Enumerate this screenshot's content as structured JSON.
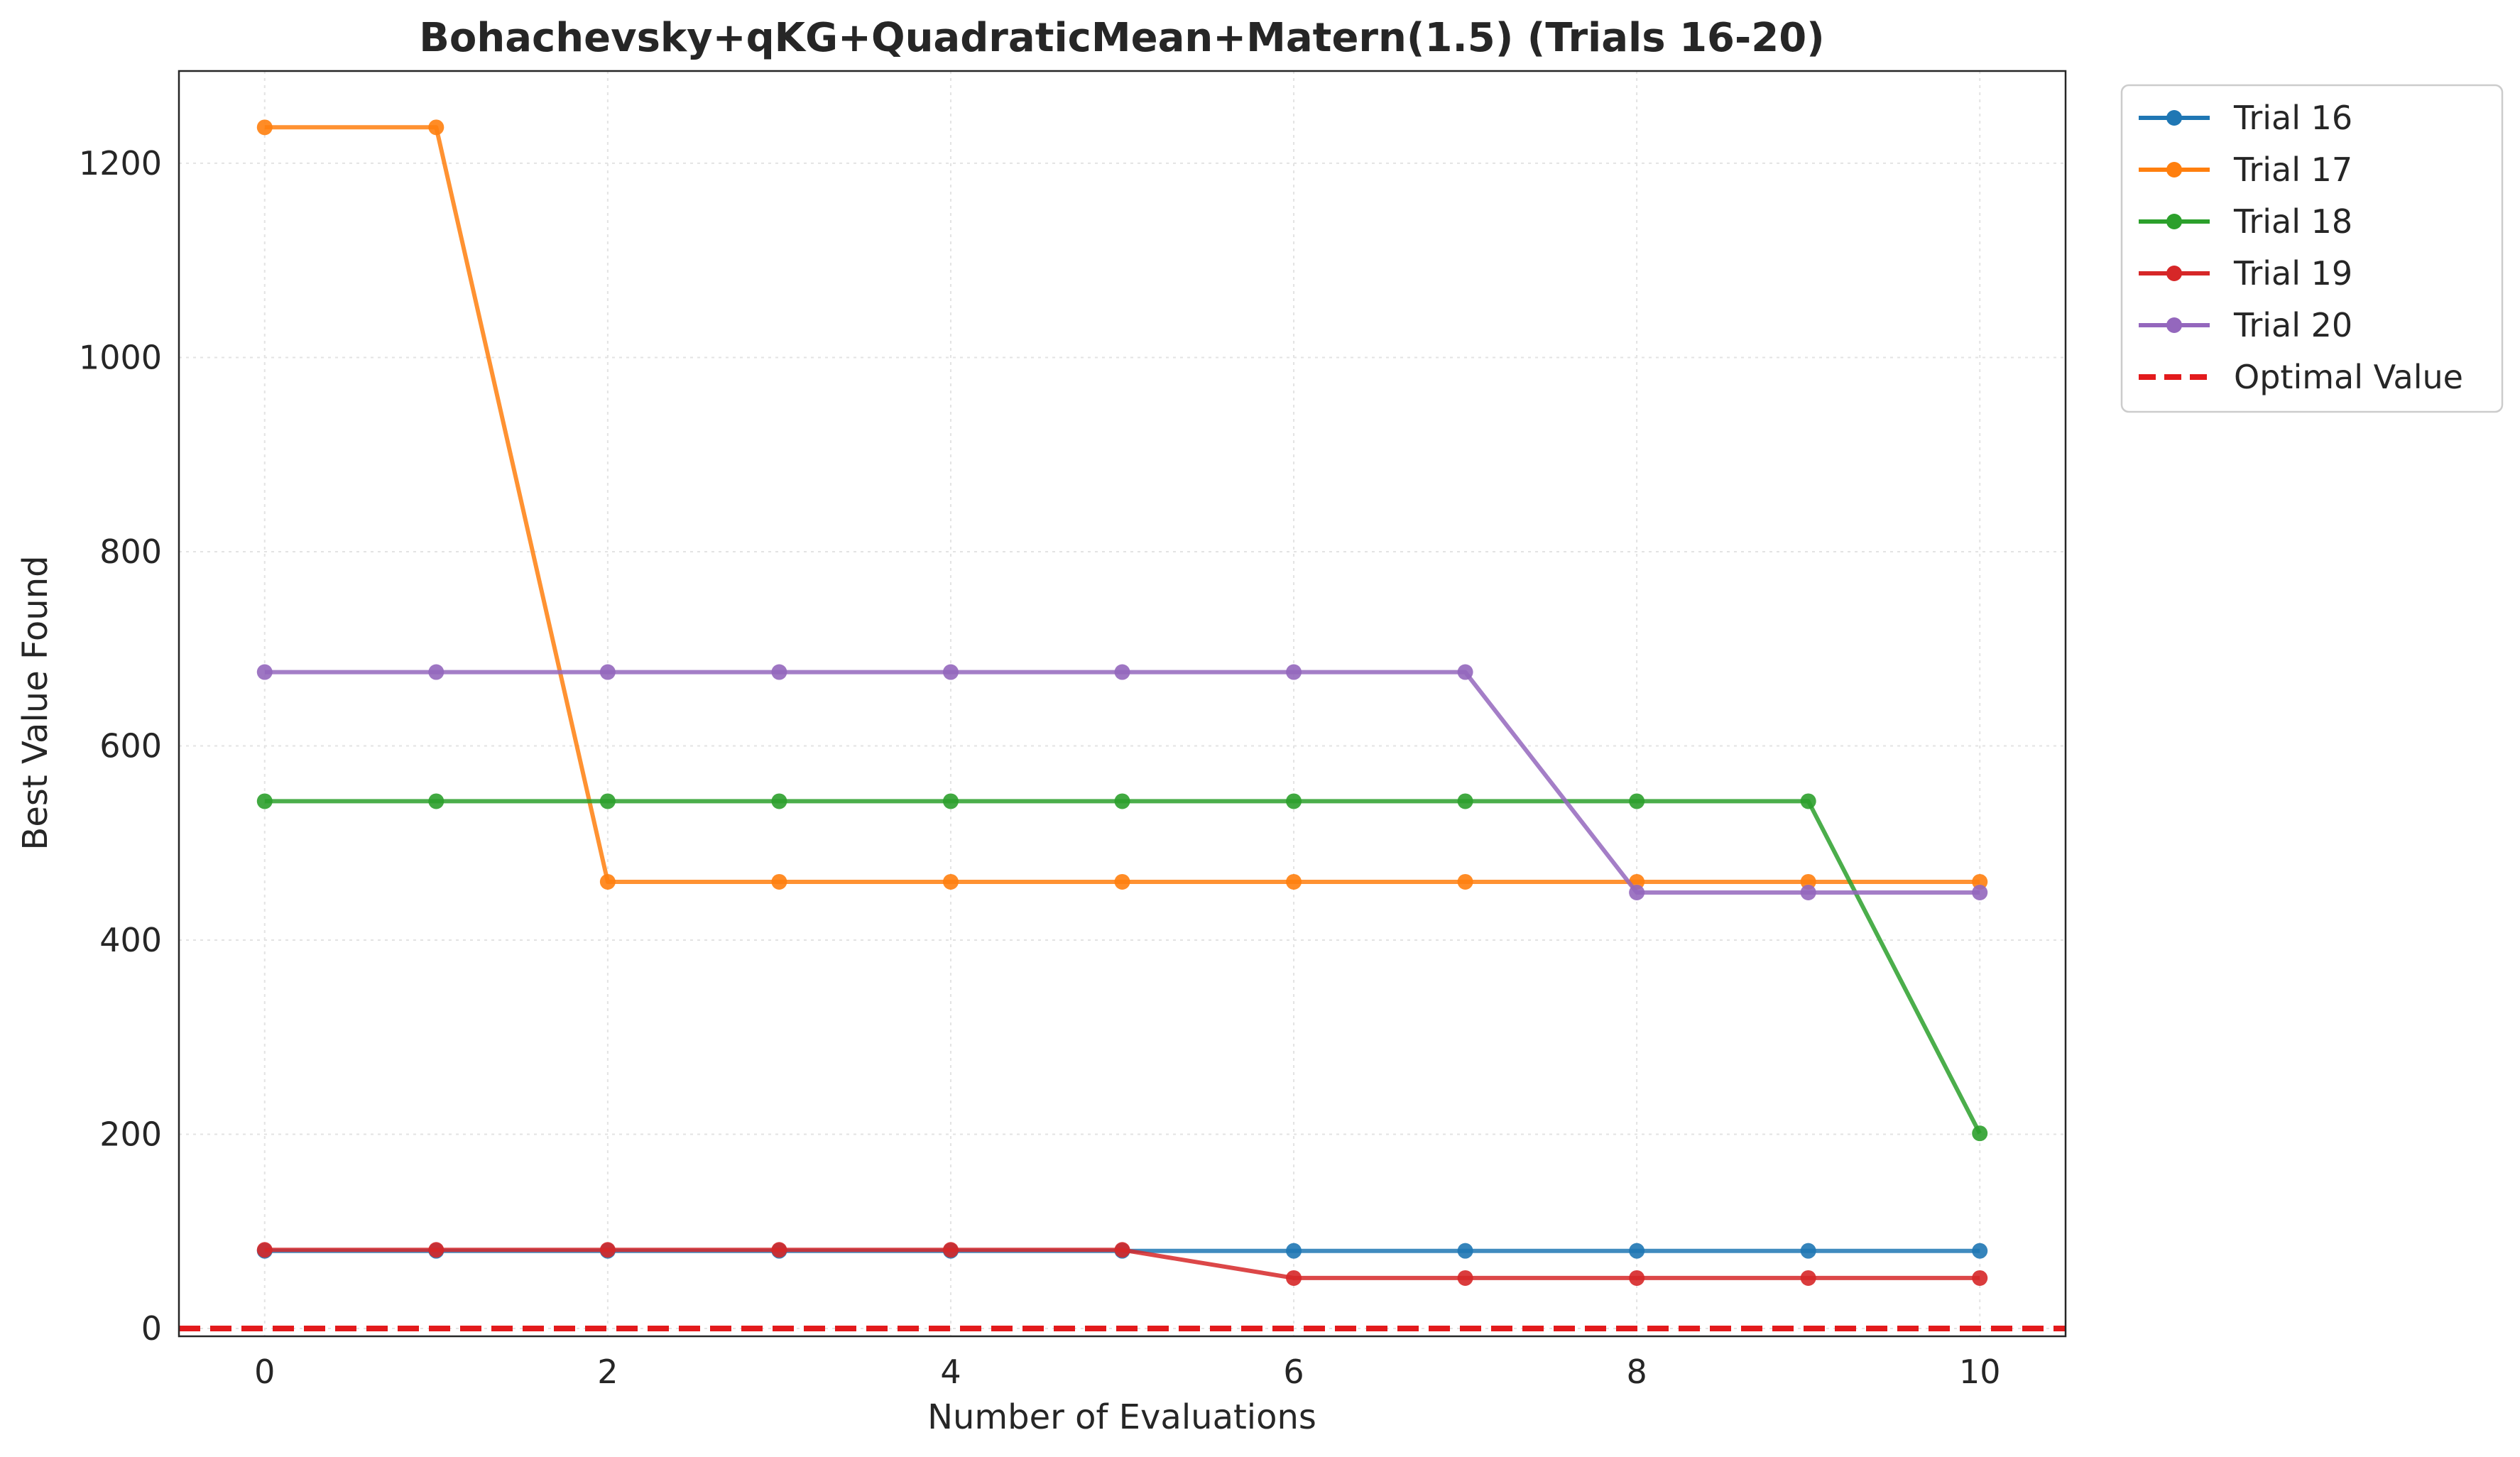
{
  "chart_data": {
    "type": "line",
    "title": "Bohachevsky+qKG+QuadraticMean+Matern(1.5) (Trials 16-20)",
    "xlabel": "Number of Evaluations",
    "ylabel": "Best Value Found",
    "xlim": [
      -0.5,
      10.5
    ],
    "ylim": [
      -8,
      1295
    ],
    "xticks": [
      0,
      2,
      4,
      6,
      8,
      10
    ],
    "yticks": [
      0,
      200,
      400,
      600,
      800,
      1000,
      1200
    ],
    "grid": true,
    "legend_position": "outside-top-right",
    "x": [
      0,
      1,
      2,
      3,
      4,
      5,
      6,
      7,
      8,
      9,
      10
    ],
    "series": [
      {
        "name": "Trial 16",
        "color": "#1f77b4",
        "values": [
          80,
          80,
          80,
          80,
          80,
          80,
          80,
          80,
          80,
          80,
          80
        ]
      },
      {
        "name": "Trial 17",
        "color": "#ff7f0e",
        "values": [
          1237,
          1237,
          460,
          460,
          460,
          460,
          460,
          460,
          460,
          460,
          460
        ]
      },
      {
        "name": "Trial 18",
        "color": "#2ca02c",
        "values": [
          543,
          543,
          543,
          543,
          543,
          543,
          543,
          543,
          543,
          543,
          201
        ]
      },
      {
        "name": "Trial 19",
        "color": "#d62728",
        "values": [
          81,
          81,
          81,
          81,
          81,
          81,
          52,
          52,
          52,
          52,
          52
        ]
      },
      {
        "name": "Trial 20",
        "color": "#9467bd",
        "values": [
          676,
          676,
          676,
          676,
          676,
          676,
          676,
          676,
          449,
          449,
          449
        ]
      }
    ],
    "reference_line": {
      "name": "Optimal Value",
      "value": 0,
      "color": "#e31a1c",
      "style": "dashed"
    }
  }
}
